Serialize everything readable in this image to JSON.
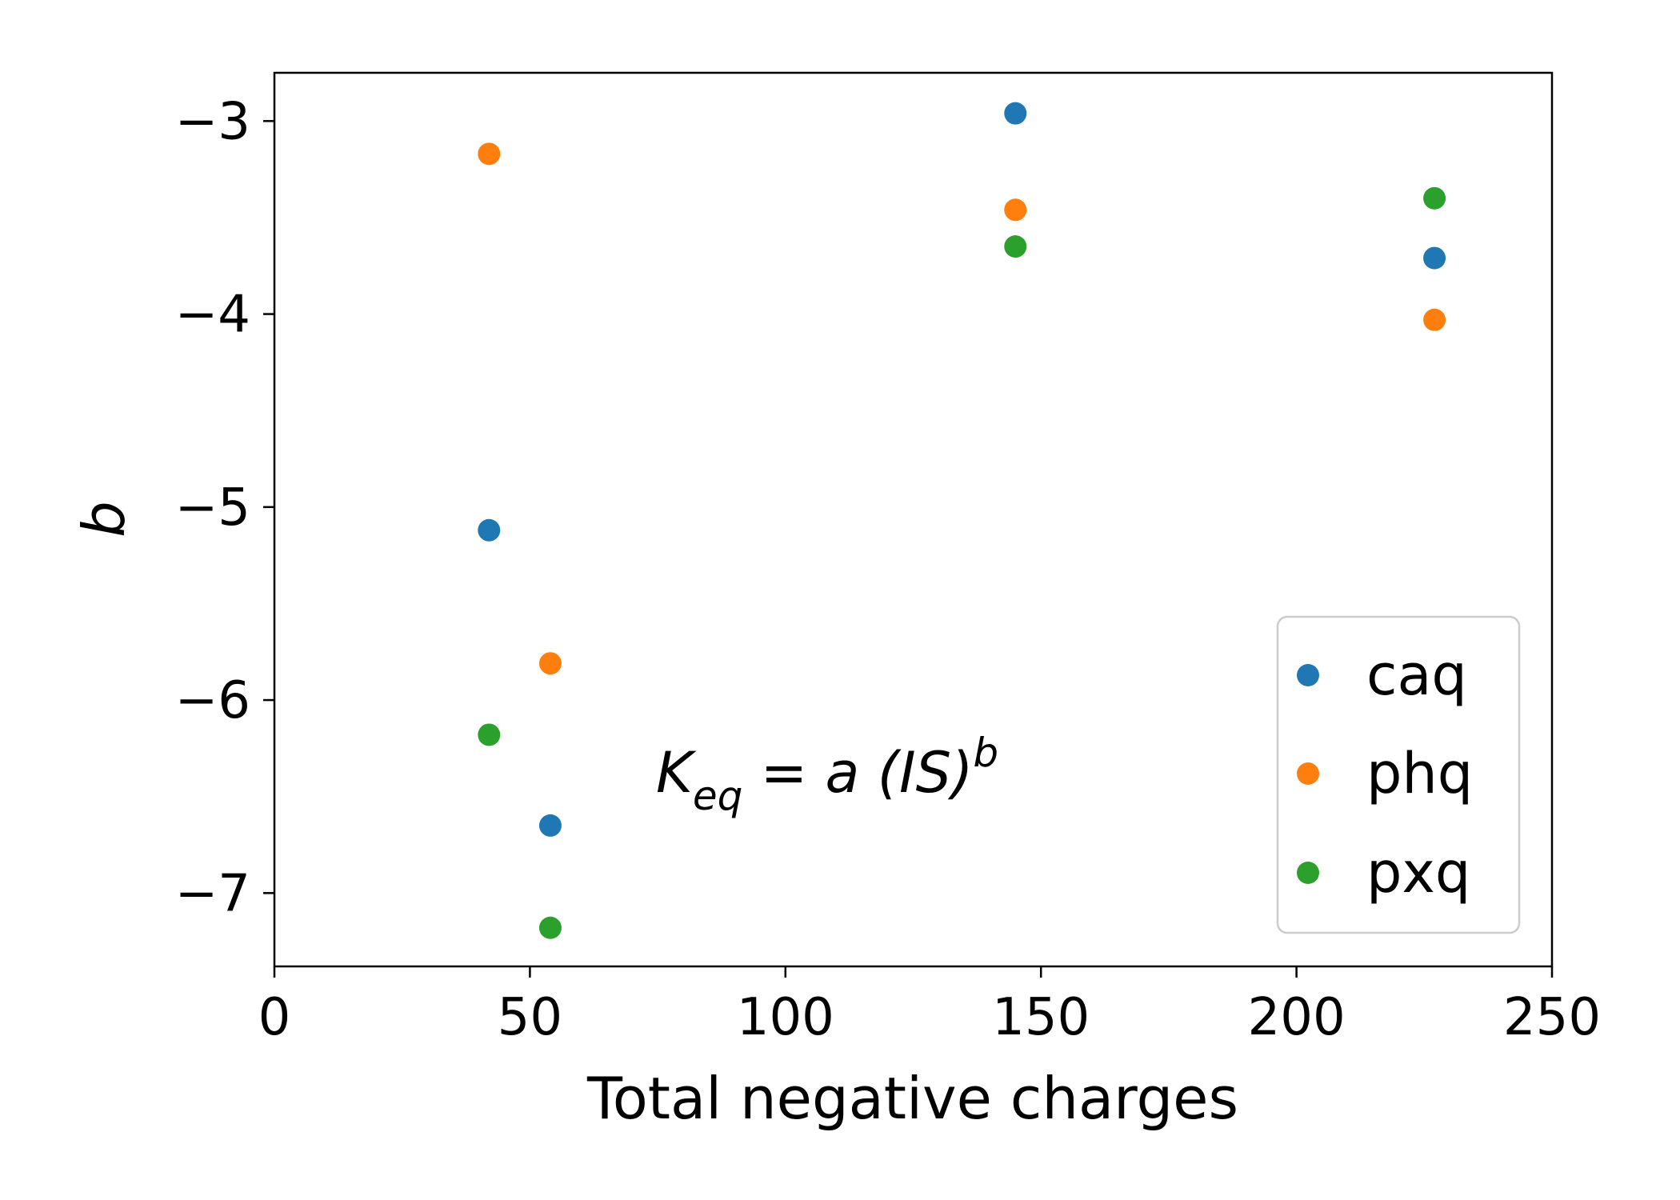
{
  "chart_data": {
    "type": "scatter",
    "title": "",
    "xlabel": "Total negative charges",
    "ylabel": "b",
    "xlim": [
      0,
      250
    ],
    "ylim": [
      -7.38,
      -2.75
    ],
    "xticks": [
      0,
      50,
      100,
      150,
      200,
      250
    ],
    "yticks": [
      -7,
      -6,
      -5,
      -4,
      -3
    ],
    "xtick_labels": [
      "0",
      "50",
      "100",
      "150",
      "200",
      "250"
    ],
    "ytick_labels": [
      "−7",
      "−6",
      "−5",
      "−4",
      "−3"
    ],
    "grid": false,
    "legend_position": "lower-right",
    "annotation": {
      "K": "K",
      "sub": "eq",
      "rest": " = a (IS)",
      "sup": "b"
    },
    "series": [
      {
        "name": "caq",
        "color": "#1f77b4",
        "points": [
          [
            42,
            -5.12
          ],
          [
            54,
            -6.65
          ],
          [
            145,
            -2.96
          ],
          [
            227,
            -3.71
          ]
        ]
      },
      {
        "name": "phq",
        "color": "#ff7f0e",
        "points": [
          [
            42,
            -3.17
          ],
          [
            54,
            -5.81
          ],
          [
            145,
            -3.46
          ],
          [
            227,
            -4.03
          ]
        ]
      },
      {
        "name": "pxq",
        "color": "#2ca02c",
        "points": [
          [
            42,
            -6.18
          ],
          [
            54,
            -7.18
          ],
          [
            145,
            -3.65
          ],
          [
            227,
            -3.4
          ]
        ]
      }
    ]
  }
}
